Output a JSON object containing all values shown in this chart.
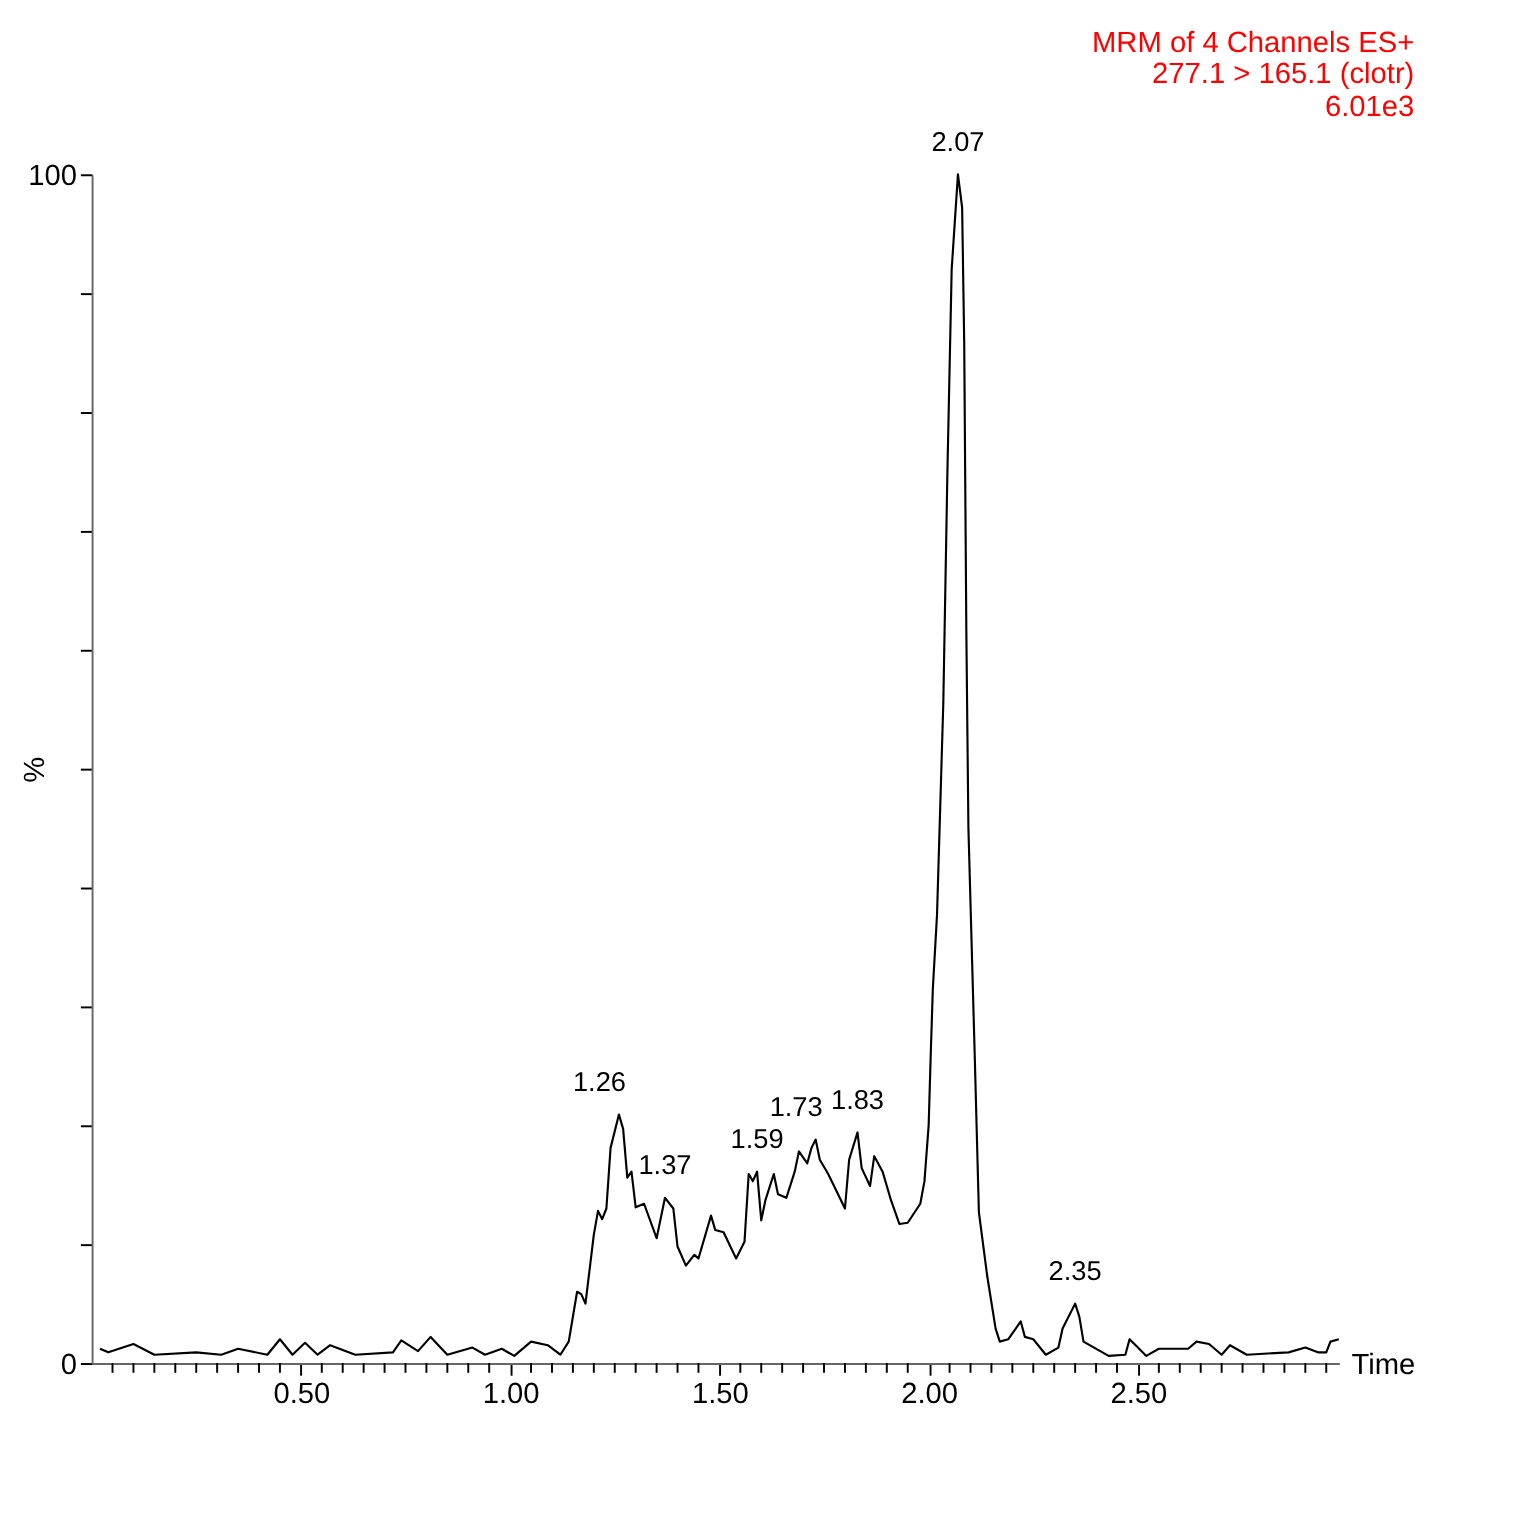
{
  "chart_data": {
    "type": "line",
    "title": "MRM of 4 Channels ES+",
    "subtitle": "277.1 > 165.1 (clotr)\n6.01e3",
    "xlabel": "Time",
    "ylabel": "%",
    "x": [
      0.02,
      0.04,
      0.1,
      0.15,
      0.25,
      0.31,
      0.35,
      0.42,
      0.45,
      0.48,
      0.51,
      0.54,
      0.57,
      0.63,
      0.72,
      0.74,
      0.78,
      0.81,
      0.85,
      0.91,
      0.94,
      0.98,
      1.01,
      1.05,
      1.09,
      1.12,
      1.14,
      1.16,
      1.17,
      1.18,
      1.2,
      1.21,
      1.22,
      1.23,
      1.24,
      1.26,
      1.27,
      1.28,
      1.29,
      1.3,
      1.32,
      1.35,
      1.37,
      1.39,
      1.4,
      1.42,
      1.44,
      1.45,
      1.48,
      1.49,
      1.51,
      1.54,
      1.56,
      1.57,
      1.58,
      1.59,
      1.6,
      1.61,
      1.63,
      1.64,
      1.66,
      1.68,
      1.69,
      1.71,
      1.72,
      1.73,
      1.74,
      1.76,
      1.8,
      1.81,
      1.83,
      1.84,
      1.86,
      1.87,
      1.89,
      1.91,
      1.93,
      1.95,
      1.98,
      1.99,
      2.0,
      2.005,
      2.01,
      2.02,
      2.035,
      2.045,
      2.055,
      2.07,
      2.08,
      2.085,
      2.09,
      2.095,
      2.11,
      2.12,
      2.14,
      2.16,
      2.17,
      2.19,
      2.22,
      2.23,
      2.25,
      2.28,
      2.31,
      2.32,
      2.35,
      2.36,
      2.37,
      2.43,
      2.47,
      2.48,
      2.5,
      2.52,
      2.55,
      2.62,
      2.64,
      2.67,
      2.7,
      2.72,
      2.76,
      2.86,
      2.9,
      2.93,
      2.95,
      2.96,
      2.98
    ],
    "series": [
      {
        "color": "#000000",
        "values": [
          1.2,
          0.9,
          1.6,
          0.7,
          0.9,
          0.7,
          1.2,
          0.7,
          2.0,
          0.7,
          1.7,
          0.7,
          1.5,
          0.7,
          0.9,
          1.9,
          1.0,
          2.2,
          0.7,
          1.3,
          0.7,
          1.2,
          0.6,
          1.8,
          1.5,
          0.7,
          1.8,
          6.0,
          5.8,
          5.0,
          10.8,
          12.8,
          12.1,
          13.0,
          18.1,
          20.9,
          19.7,
          15.6,
          16.1,
          13.1,
          13.4,
          10.5,
          13.9,
          13.0,
          9.8,
          8.2,
          9.1,
          8.8,
          12.4,
          11.2,
          11.0,
          8.8,
          10.2,
          15.9,
          15.3,
          16.1,
          12.0,
          13.7,
          15.9,
          14.2,
          13.9,
          16.1,
          17.8,
          16.8,
          18.1,
          18.8,
          17.1,
          15.9,
          13.0,
          17.1,
          19.4,
          16.4,
          14.9,
          17.4,
          16.1,
          13.7,
          11.7,
          11.8,
          13.4,
          15.3,
          20.0,
          26.0,
          31.5,
          37.7,
          55.5,
          75.3,
          92.0,
          100,
          97.2,
          85.7,
          61.7,
          45.0,
          26.0,
          12.7,
          7.3,
          2.9,
          1.8,
          2.0,
          3.5,
          2.2,
          2.0,
          0.7,
          1.3,
          2.9,
          5.0,
          3.9,
          1.8,
          0.6,
          0.7,
          2.0,
          1.3,
          0.6,
          1.2,
          1.2,
          1.8,
          1.6,
          0.7,
          1.5,
          0.7,
          0.9,
          1.3,
          0.9,
          0.9,
          1.8,
          2.0
        ]
      }
    ],
    "xlim": [
      0,
      2.98
    ],
    "xticks": [
      {
        "value": 0.05,
        "label": null
      },
      {
        "value": 0.1,
        "label": null
      },
      {
        "value": 0.15,
        "label": null
      },
      {
        "value": 0.2,
        "label": null
      },
      {
        "value": 0.25,
        "label": null
      },
      {
        "value": 0.3,
        "label": null
      },
      {
        "value": 0.35,
        "label": null
      },
      {
        "value": 0.4,
        "label": null
      },
      {
        "value": 0.45,
        "label": null
      },
      {
        "value": 0.5,
        "label": "0.50"
      },
      {
        "value": 0.55,
        "label": null
      },
      {
        "value": 0.6,
        "label": null
      },
      {
        "value": 0.65,
        "label": null
      },
      {
        "value": 0.7,
        "label": null
      },
      {
        "value": 0.75,
        "label": null
      },
      {
        "value": 0.8,
        "label": null
      },
      {
        "value": 0.85,
        "label": null
      },
      {
        "value": 0.9,
        "label": null
      },
      {
        "value": 0.95,
        "label": null
      },
      {
        "value": 1.0,
        "label": "1.00"
      },
      {
        "value": 1.05,
        "label": null
      },
      {
        "value": 1.1,
        "label": null
      },
      {
        "value": 1.15,
        "label": null
      },
      {
        "value": 1.2,
        "label": null
      },
      {
        "value": 1.25,
        "label": null
      },
      {
        "value": 1.3,
        "label": null
      },
      {
        "value": 1.35,
        "label": null
      },
      {
        "value": 1.4,
        "label": null
      },
      {
        "value": 1.45,
        "label": null
      },
      {
        "value": 1.5,
        "label": "1.50"
      },
      {
        "value": 1.55,
        "label": null
      },
      {
        "value": 1.6,
        "label": null
      },
      {
        "value": 1.65,
        "label": null
      },
      {
        "value": 1.7,
        "label": null
      },
      {
        "value": 1.75,
        "label": null
      },
      {
        "value": 1.8,
        "label": null
      },
      {
        "value": 1.85,
        "label": null
      },
      {
        "value": 1.9,
        "label": null
      },
      {
        "value": 1.95,
        "label": null
      },
      {
        "value": 2.0,
        "label": "2.00"
      },
      {
        "value": 2.05,
        "label": null
      },
      {
        "value": 2.1,
        "label": null
      },
      {
        "value": 2.15,
        "label": null
      },
      {
        "value": 2.2,
        "label": null
      },
      {
        "value": 2.25,
        "label": null
      },
      {
        "value": 2.3,
        "label": null
      },
      {
        "value": 2.35,
        "label": null
      },
      {
        "value": 2.4,
        "label": null
      },
      {
        "value": 2.45,
        "label": null
      },
      {
        "value": 2.5,
        "label": "2.50"
      },
      {
        "value": 2.55,
        "label": null
      },
      {
        "value": 2.6,
        "label": null
      },
      {
        "value": 2.65,
        "label": null
      },
      {
        "value": 2.7,
        "label": null
      },
      {
        "value": 2.75,
        "label": null
      },
      {
        "value": 2.8,
        "label": null
      },
      {
        "value": 2.85,
        "label": null
      },
      {
        "value": 2.9,
        "label": null
      },
      {
        "value": 2.95,
        "label": null
      }
    ],
    "ylim": [
      0,
      100
    ],
    "yticks": [
      0,
      {
        "value": 10,
        "label": null
      },
      {
        "value": 20,
        "label": null
      },
      {
        "value": 30,
        "label": null
      },
      {
        "value": 40,
        "label": null
      },
      {
        "value": 50,
        "label": null
      },
      {
        "value": 60,
        "label": null
      },
      {
        "value": 70,
        "label": null
      },
      {
        "value": 80,
        "label": null
      },
      {
        "value": 90,
        "label": null
      },
      100
    ],
    "annotations": [
      {
        "text": "1.26",
        "x": 1.26,
        "y": 20.9
      },
      {
        "text": "1.37",
        "x": 1.37,
        "y": 13.9
      },
      {
        "text": "1.59",
        "x": 1.59,
        "y": 16.1
      },
      {
        "text": "1.73",
        "x": 1.73,
        "y": 18.8
      },
      {
        "text": "1.83",
        "x": 1.83,
        "y": 19.4
      },
      {
        "text": "2.07",
        "x": 2.07,
        "y": 100
      },
      {
        "text": "2.35",
        "x": 2.35,
        "y": 5.0
      }
    ],
    "grid": false,
    "marker": "none",
    "line_style": "solid"
  }
}
